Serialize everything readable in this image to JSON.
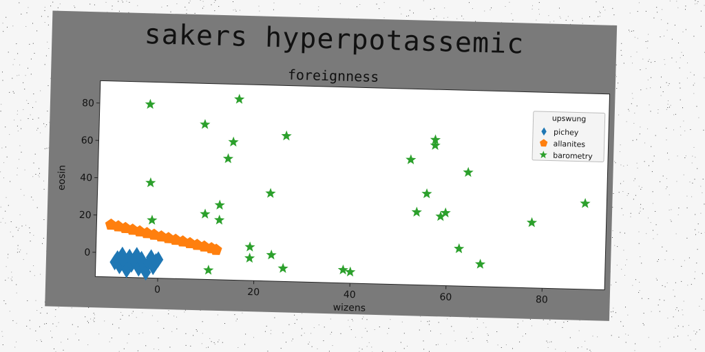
{
  "chart_data": {
    "type": "scatter",
    "title": "sakers hyperpotassemic",
    "subtitle": "foreignness",
    "xlabel": "wizens",
    "ylabel": "eosin",
    "xlim": [
      -13,
      93
    ],
    "ylim": [
      -13,
      92
    ],
    "xticks": [
      0,
      20,
      40,
      60,
      80
    ],
    "yticks": [
      0,
      20,
      40,
      60,
      80
    ],
    "grid": false,
    "legend": {
      "title": "upswung",
      "placement": "top-right"
    },
    "series": [
      {
        "name": "pichey",
        "color": "#1f77b4",
        "marker": "diamond",
        "points": [
          [
            -9,
            -5
          ],
          [
            -8.5,
            -3
          ],
          [
            -8,
            -7
          ],
          [
            -7.5,
            -1
          ],
          [
            -7,
            -5
          ],
          [
            -6.5,
            -9
          ],
          [
            -6,
            -2
          ],
          [
            -5.5,
            -6
          ],
          [
            -5,
            -4
          ],
          [
            -4.5,
            -1
          ],
          [
            -4,
            -8
          ],
          [
            -3.5,
            -3
          ],
          [
            -3,
            -6
          ],
          [
            -2.5,
            -10
          ],
          [
            -2,
            -5
          ],
          [
            -1.5,
            -2
          ],
          [
            -1,
            -7
          ],
          [
            -0.5,
            -4
          ],
          [
            0,
            -3
          ]
        ]
      },
      {
        "name": "allanites",
        "color": "#ff7f0e",
        "marker": "pentagon",
        "points": [
          [
            -10,
            15
          ],
          [
            -8.5,
            14.2
          ],
          [
            -7,
            13.4
          ],
          [
            -5.5,
            12.6
          ],
          [
            -4,
            11.8
          ],
          [
            -2.5,
            11
          ],
          [
            -1,
            10.2
          ],
          [
            0.5,
            9.4
          ],
          [
            2,
            8.6
          ],
          [
            3.5,
            7.8
          ],
          [
            5,
            7
          ],
          [
            6.5,
            6.2
          ],
          [
            8,
            5.4
          ],
          [
            9.5,
            4.6
          ],
          [
            11,
            3.8
          ],
          [
            12,
            3
          ]
        ]
      },
      {
        "name": "barometry",
        "color": "#2ca02c",
        "marker": "star",
        "points": [
          [
            -2.5,
            80
          ],
          [
            -2,
            38
          ],
          [
            -1.5,
            18
          ],
          [
            9,
            70
          ],
          [
            9.5,
            22
          ],
          [
            12.5,
            27
          ],
          [
            12.5,
            19
          ],
          [
            14,
            52
          ],
          [
            15,
            61
          ],
          [
            16,
            84
          ],
          [
            10.5,
            -8
          ],
          [
            19,
            5
          ],
          [
            19,
            -1
          ],
          [
            23,
            34
          ],
          [
            23.5,
            1
          ],
          [
            26,
            65
          ],
          [
            26,
            -6
          ],
          [
            38.5,
            -6
          ],
          [
            40,
            -7
          ],
          [
            52,
            54
          ],
          [
            53.5,
            26
          ],
          [
            55.5,
            36
          ],
          [
            57,
            65
          ],
          [
            57,
            62
          ],
          [
            58.5,
            24
          ],
          [
            59.5,
            26
          ],
          [
            62.5,
            7
          ],
          [
            64,
            48
          ],
          [
            67,
            -1
          ],
          [
            77.5,
            22
          ],
          [
            88.5,
            33
          ]
        ]
      }
    ]
  }
}
